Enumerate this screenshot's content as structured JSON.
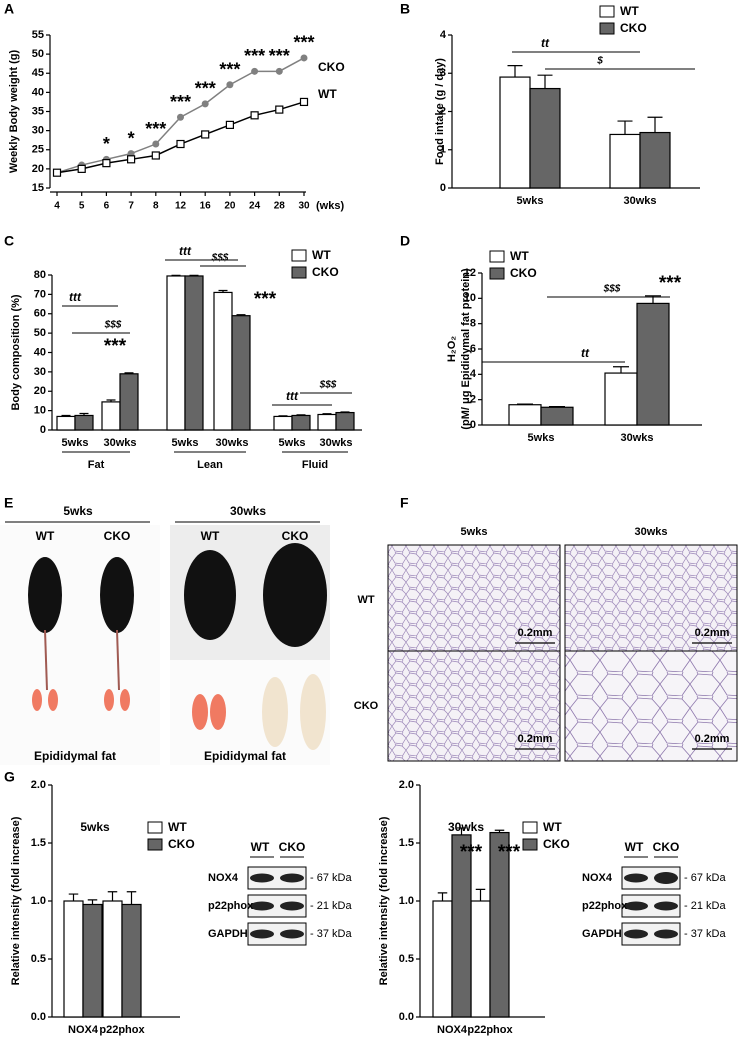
{
  "chart_data": [
    {
      "type": "line",
      "panel": "A",
      "y_label": "Weekly Body weight (g)",
      "x_label": "(wks)",
      "categories": [
        "4",
        "5",
        "6",
        "7",
        "8",
        "12",
        "16",
        "20",
        "24",
        "28",
        "30"
      ],
      "series": [
        {
          "name": "CKO",
          "color": "#808080",
          "marker": "circle",
          "values": [
            19,
            21,
            22.5,
            24,
            26.5,
            33.5,
            37,
            42,
            45.5,
            45.5,
            49
          ]
        },
        {
          "name": "WT",
          "color": "#000000",
          "marker": "square",
          "values": [
            19,
            20,
            21.5,
            22.5,
            23.5,
            26.5,
            29,
            31.5,
            34,
            35.5,
            37.5
          ]
        }
      ],
      "ylim": [
        15,
        55
      ],
      "yticks": [
        15,
        20,
        25,
        30,
        35,
        40,
        45,
        50,
        55
      ],
      "annotations": [
        "*",
        "*",
        "***",
        "***",
        "***",
        "***",
        "***",
        "***",
        "***"
      ]
    },
    {
      "type": "bar",
      "panel": "B",
      "y_label": "Food intake (g / day)",
      "categories": [
        "5wks",
        "30wks"
      ],
      "series": [
        {
          "name": "WT",
          "color": "#ffffff",
          "values": [
            2.9,
            1.4
          ],
          "errors": [
            0.3,
            0.35
          ]
        },
        {
          "name": "CKO",
          "color": "#666666",
          "values": [
            2.6,
            1.45
          ],
          "errors": [
            0.35,
            0.4
          ]
        }
      ],
      "ylim": [
        0,
        4
      ],
      "yticks": [
        0,
        1,
        2,
        3,
        4
      ],
      "annotations": [
        "tt",
        "$"
      ]
    },
    {
      "type": "bar",
      "panel": "C",
      "y_label": "Body composition (%)",
      "categories": [
        "5wks",
        "30wks",
        "5wks",
        "30wks",
        "5wks",
        "30wks"
      ],
      "groups": [
        "Fat",
        "Lean",
        "Fluid"
      ],
      "series": [
        {
          "name": "WT",
          "color": "#ffffff",
          "values": [
            7,
            14.5,
            79.5,
            71,
            7,
            8
          ],
          "errors": [
            0.5,
            1,
            0.3,
            1,
            0.3,
            0.4
          ]
        },
        {
          "name": "CKO",
          "color": "#666666",
          "values": [
            7.5,
            29,
            79.5,
            59,
            7.5,
            9
          ],
          "errors": [
            1,
            0.5,
            0.3,
            0.5,
            0.3,
            0.3
          ]
        }
      ],
      "ylim": [
        0,
        80
      ],
      "yticks": [
        0,
        10,
        20,
        30,
        40,
        50,
        60,
        70,
        80
      ],
      "annotations": [
        "ttt",
        "$$$",
        "***",
        "ttt",
        "$$$",
        "***",
        "ttt",
        "$$$"
      ]
    },
    {
      "type": "bar",
      "panel": "D",
      "y_label": [
        "H₂O₂",
        "(pM/ μg Epididymal fat protein)"
      ],
      "categories": [
        "5wks",
        "30wks"
      ],
      "series": [
        {
          "name": "WT",
          "color": "#ffffff",
          "values": [
            1.6,
            4.1
          ],
          "errors": [
            0.05,
            0.5
          ]
        },
        {
          "name": "CKO",
          "color": "#666666",
          "values": [
            1.4,
            9.6
          ],
          "errors": [
            0.05,
            0.6
          ]
        }
      ],
      "ylim": [
        0,
        12
      ],
      "yticks": [
        0,
        2,
        4,
        6,
        8,
        10,
        12
      ],
      "annotations": [
        "$$$",
        "***",
        "tt"
      ]
    },
    {
      "type": "bar",
      "panel": "G",
      "subtitle": "5wks",
      "y_label": "Relative intensity (fold increase)",
      "categories": [
        "NOX4",
        "p22phox"
      ],
      "series": [
        {
          "name": "WT",
          "color": "#ffffff",
          "values": [
            1.0,
            1.0
          ],
          "errors": [
            0.06,
            0.08
          ]
        },
        {
          "name": "CKO",
          "color": "#666666",
          "values": [
            0.97,
            0.97
          ],
          "errors": [
            0.04,
            0.11
          ]
        }
      ],
      "ylim": [
        0,
        2
      ],
      "yticks": [
        {
          "value": 0,
          "label": "0.0"
        },
        {
          "value": 0.5,
          "label": "0.5"
        },
        {
          "value": 1,
          "label": "1.0"
        },
        {
          "value": 1.5,
          "label": "1.5"
        },
        {
          "value": 2,
          "label": "2.0"
        }
      ]
    },
    {
      "type": "bar",
      "subtitle": "30wks",
      "y_label": "Relative intensity (fold increase)",
      "categories": [
        "NOX4",
        "p22phox"
      ],
      "series": [
        {
          "name": "WT",
          "color": "#ffffff",
          "values": [
            1.0,
            1.0
          ],
          "errors": [
            0.07,
            0.1
          ]
        },
        {
          "name": "CKO",
          "color": "#666666",
          "values": [
            1.57,
            1.59
          ],
          "errors": [
            0.06,
            0.02
          ]
        }
      ],
      "ylim": [
        0,
        2
      ],
      "yticks": [
        {
          "value": 0,
          "label": "0.0"
        },
        {
          "value": 0.5,
          "label": "0.5"
        },
        {
          "value": 1,
          "label": "1.0"
        },
        {
          "value": 1.5,
          "label": "1.5"
        },
        {
          "value": 2,
          "label": "2.0"
        }
      ],
      "annotations": [
        "***",
        "***"
      ]
    }
  ],
  "photo_panel": {
    "panel": "E",
    "groups": [
      {
        "title": "5wks",
        "labels": [
          "WT",
          "CKO"
        ],
        "caption": "Epididymal fat"
      },
      {
        "title": "30wks",
        "labels": [
          "WT",
          "CKO"
        ],
        "caption": "Epididymal fat"
      }
    ]
  },
  "histology_panel": {
    "panel": "F",
    "columns": [
      "5wks",
      "30wks"
    ],
    "rows": [
      "WT",
      "CKO"
    ],
    "scale_bars": [
      "0.2mm",
      "0.2mm",
      "0.2mm",
      "0.2mm"
    ]
  },
  "blots": [
    {
      "header": [
        "WT",
        "CKO"
      ],
      "rows": [
        "NOX4",
        "p22phox",
        "GAPDH"
      ],
      "sizes": [
        "- 67 kDa",
        "- 21 kDa",
        "- 37 kDa"
      ]
    },
    {
      "header": [
        "WT",
        "CKO"
      ],
      "rows": [
        "NOX4",
        "p22phox",
        "GAPDH"
      ],
      "sizes": [
        "- 67 kDa",
        "- 21 kDa",
        "- 37 kDa"
      ]
    }
  ]
}
